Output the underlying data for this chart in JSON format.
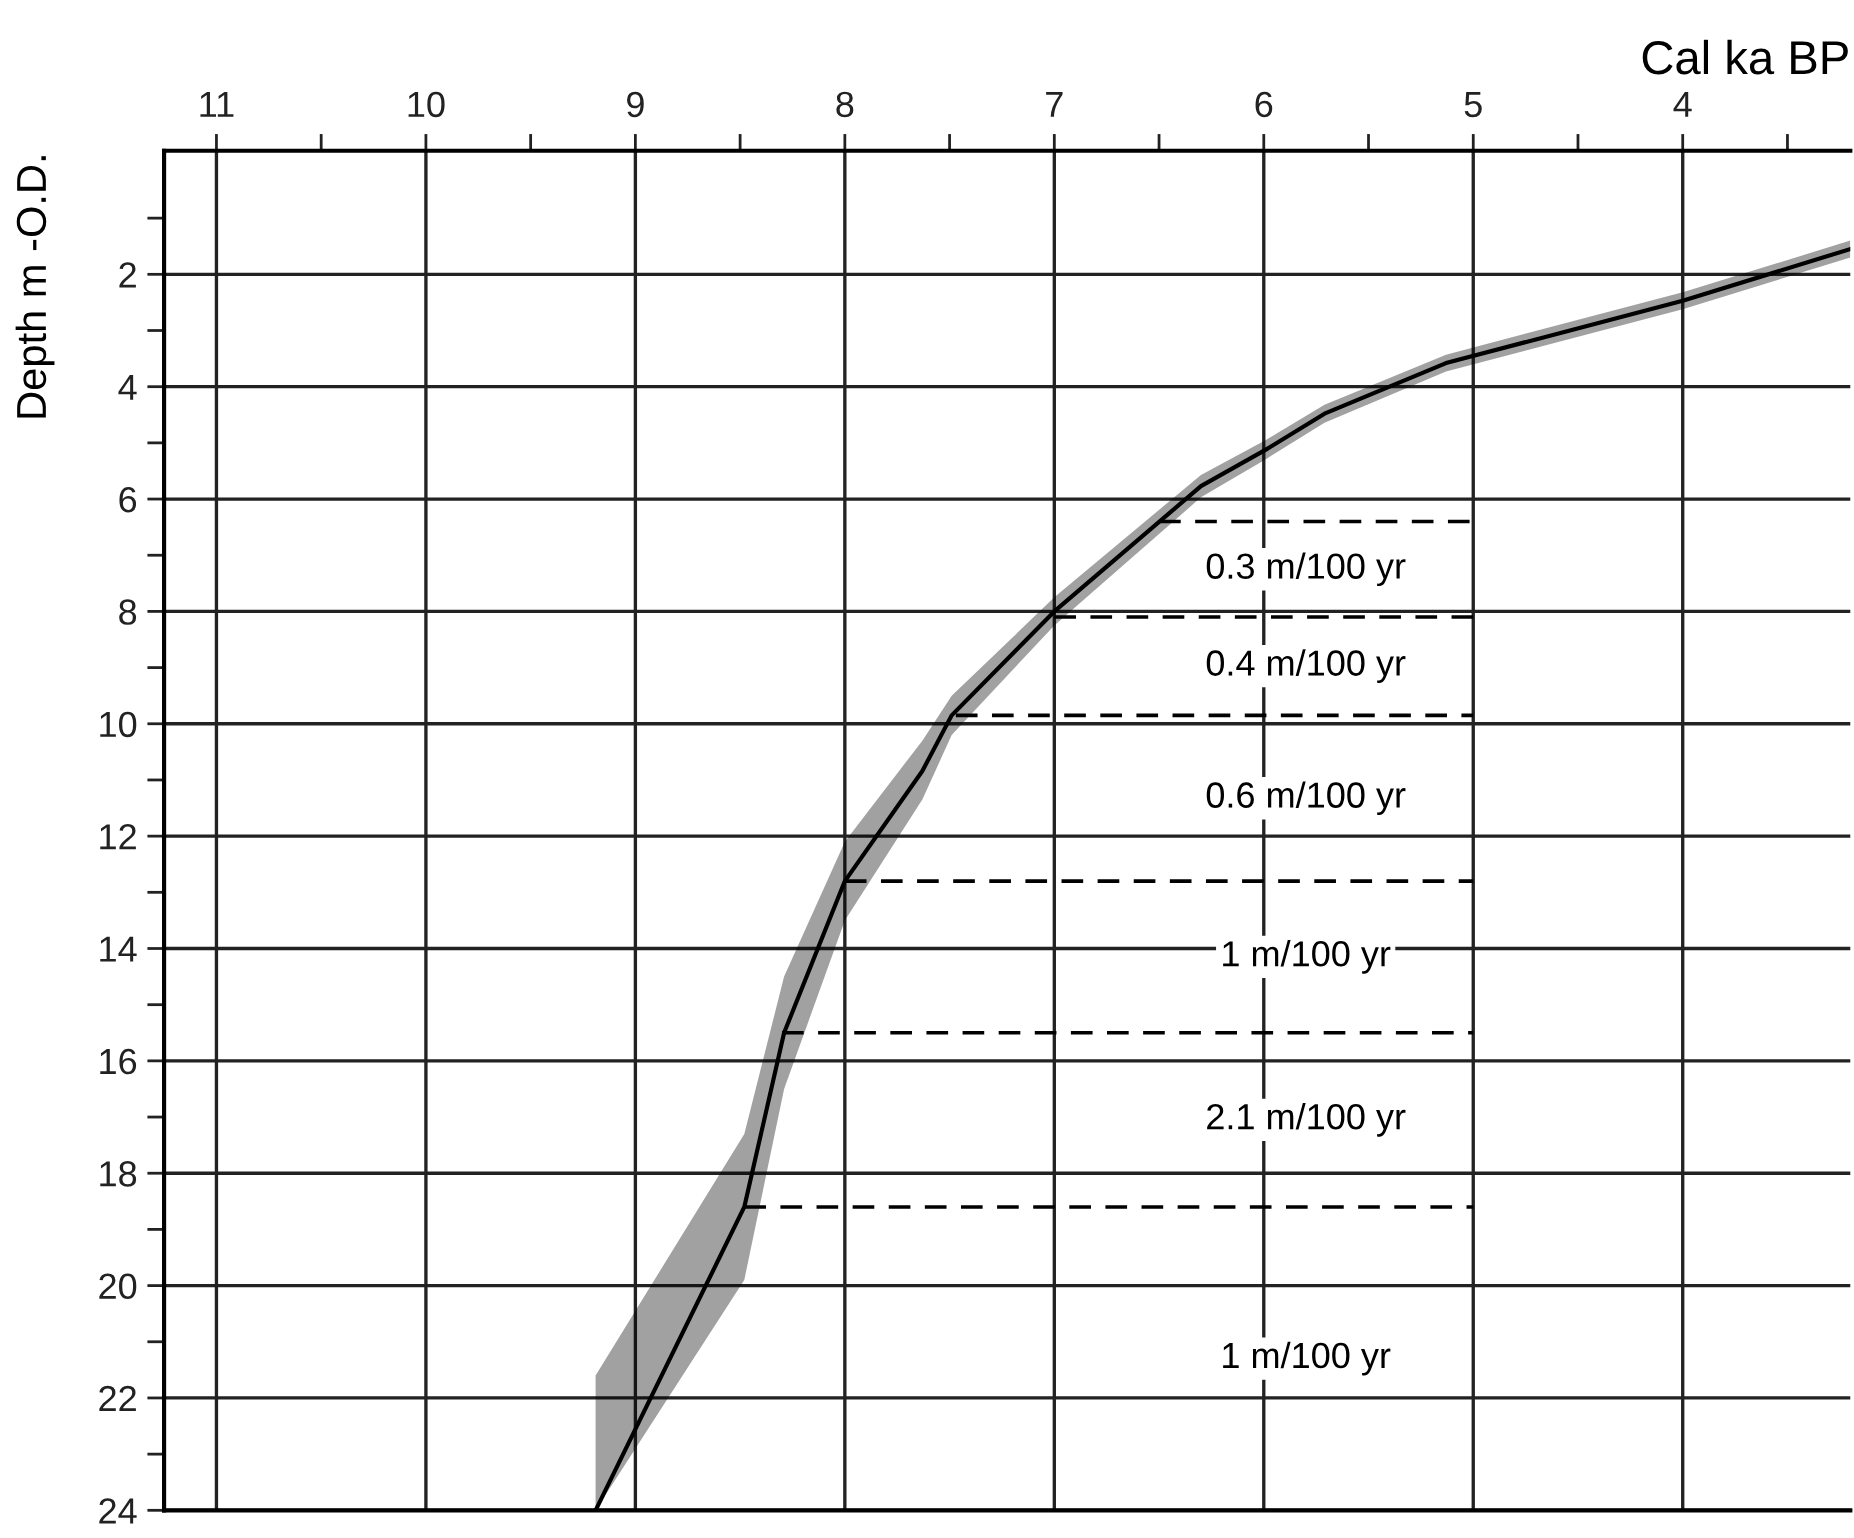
{
  "chart_data": {
    "type": "line",
    "xlabel": "Cal ka BP",
    "ylabel": "Depth m -O.D.",
    "xlim": [
      11.25,
      3.2
    ],
    "ylim": [
      24,
      -0.2
    ],
    "xticks": [
      11,
      {
        "value": 10.5,
        "label": null
      },
      10,
      {
        "value": 9.5,
        "label": null
      },
      9,
      {
        "value": 8.5,
        "label": null
      },
      8,
      {
        "value": 7.5,
        "label": null
      },
      7,
      {
        "value": 6.5,
        "label": null
      },
      6,
      {
        "value": 5.5,
        "label": null
      },
      5,
      {
        "value": 4.5,
        "label": null
      },
      4,
      {
        "value": 3.5,
        "label": null
      }
    ],
    "yticks": [
      {
        "value": 1,
        "label": null
      },
      2,
      {
        "value": 3,
        "label": null
      },
      4,
      {
        "value": 5,
        "label": null
      },
      6,
      {
        "value": 7,
        "label": null
      },
      8,
      {
        "value": 9,
        "label": null
      },
      10,
      {
        "value": 11,
        "label": null
      },
      12,
      {
        "value": 13,
        "label": null
      },
      14,
      {
        "value": 15,
        "label": null
      },
      16,
      {
        "value": 17,
        "label": null
      },
      18,
      {
        "value": 19,
        "label": null
      },
      20,
      {
        "value": 21,
        "label": null
      },
      22,
      {
        "value": 23,
        "label": null
      },
      24
    ],
    "grid": true,
    "marker": "none",
    "series": [
      {
        "color": "#000000",
        "line_style": "solid",
        "x": [
          9.19,
          8.48,
          8.29,
          8.0,
          7.63,
          7.49,
          7.0,
          6.3,
          5.99,
          5.71,
          5.13,
          4.0,
          3.2
        ],
        "values": [
          24,
          18.6,
          15.5,
          12.8,
          10.84,
          9.85,
          8.0,
          5.77,
          5.12,
          4.48,
          3.58,
          2.47,
          1.55
        ],
        "lower": [
          21.6,
          17.3,
          14.5,
          12.1,
          10.3,
          9.5,
          7.75,
          5.57,
          4.95,
          4.32,
          3.43,
          2.32,
          1.4
        ],
        "upper": [
          24,
          19.9,
          16.5,
          13.5,
          11.35,
          10.2,
          8.25,
          5.97,
          5.29,
          4.64,
          3.73,
          2.62,
          1.7
        ]
      },
      {
        "color": "#000000",
        "line_style": "dashed",
        "x": [
          6.5,
          5.0
        ],
        "values": [
          6.4,
          6.4
        ]
      },
      {
        "color": "#000000",
        "line_style": "dashed",
        "x": [
          7.0,
          5.0
        ],
        "values": [
          8.1,
          8.1
        ]
      },
      {
        "color": "#000000",
        "line_style": "dashed",
        "x": [
          7.47,
          5.0
        ],
        "values": [
          9.85,
          9.85
        ]
      },
      {
        "color": "#000000",
        "line_style": "dashed",
        "x": [
          8.0,
          5.0
        ],
        "values": [
          12.8,
          12.8
        ]
      },
      {
        "color": "#000000",
        "line_style": "dashed",
        "x": [
          8.3,
          5.0
        ],
        "values": [
          15.5,
          15.5
        ]
      },
      {
        "color": "#000000",
        "line_style": "dashed",
        "x": [
          8.48,
          5.0
        ],
        "values": [
          18.6,
          18.6
        ]
      }
    ],
    "annotations": [
      "0.3 m/100 yr",
      "0.4 m/100 yr",
      "0.6 m/100 yr",
      "1 m/100 yr",
      "2.1 m/100 yr",
      "1 m/100 yr"
    ]
  }
}
